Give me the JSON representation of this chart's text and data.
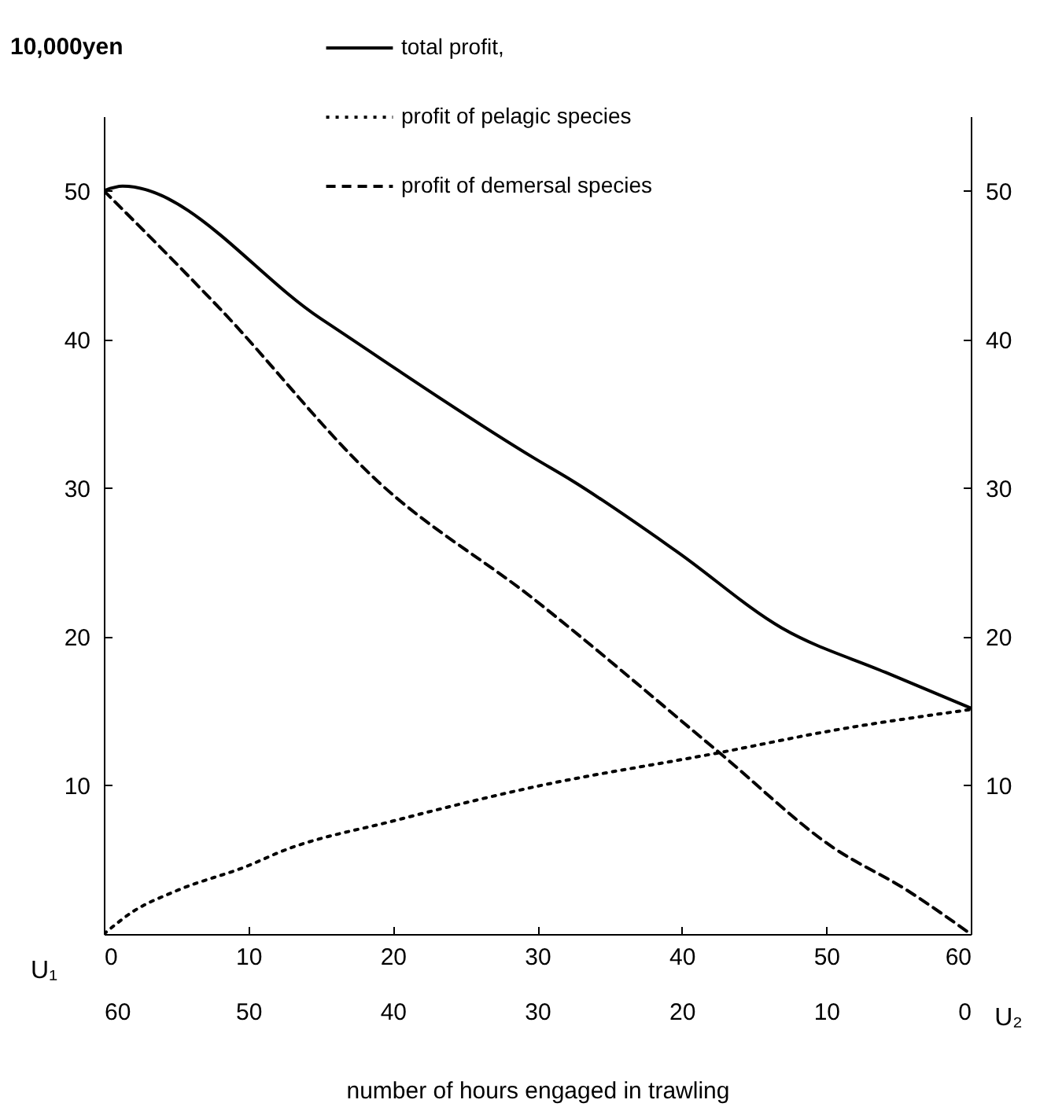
{
  "chart_data": {
    "type": "line",
    "ylabel": "10,000yen",
    "xlabel": "number of hours engaged in trawling",
    "xlim": [
      0,
      60
    ],
    "xticks": [
      0,
      10,
      20,
      30,
      40,
      50,
      60
    ],
    "x2lim": [
      60,
      0
    ],
    "x2ticks": [
      60,
      50,
      40,
      30,
      20,
      10,
      0
    ],
    "ylim": [
      0,
      55
    ],
    "yticks": [
      10,
      20,
      30,
      40,
      50
    ],
    "y2lim": [
      0,
      55
    ],
    "y2ticks": [
      10,
      20,
      30,
      40,
      50
    ],
    "grid": false,
    "legend": "top",
    "marker": "none",
    "annotations": [
      "U₁",
      "U₂"
    ],
    "series": [
      {
        "name": "total profit,",
        "color": "#000000",
        "line_style": "solid",
        "x": [
          0,
          1.3,
          15,
          29.8,
          32.4,
          39.7,
          46.9,
          54.1,
          60
        ],
        "values": [
          50,
          50.3,
          41.4,
          32,
          30.5,
          25.7,
          20.6,
          17.6,
          15.2
        ]
      },
      {
        "name": "profit of pelagic species",
        "color": "#000000",
        "line_style": "dotted",
        "x": [
          0,
          2,
          5,
          10,
          12.4,
          20,
          29.8,
          42.6,
          50.5,
          60
        ],
        "values": [
          0,
          1.5,
          2.9,
          4.6,
          5.6,
          7.6,
          9.9,
          12.2,
          13.7,
          15.1
        ]
      },
      {
        "name": "profit of demersal species",
        "color": "#000000",
        "line_style": "dashed",
        "x": [
          0,
          8,
          18.9,
          29.8,
          42.6,
          50.5,
          55.5,
          60
        ],
        "values": [
          50,
          42.1,
          30.5,
          22.5,
          12.2,
          5.8,
          3,
          0
        ]
      }
    ]
  }
}
